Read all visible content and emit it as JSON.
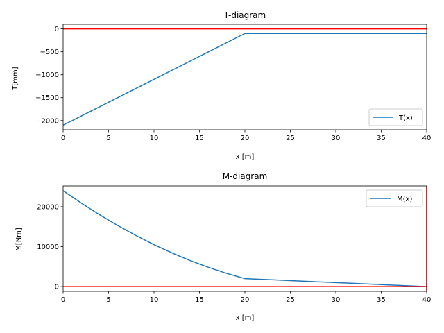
{
  "chart_data": [
    {
      "type": "line",
      "title": "T-diagram",
      "xlabel": "x [m]",
      "ylabel": "T[mm]",
      "xlim": [
        0,
        40
      ],
      "ylim": [
        -2200,
        100
      ],
      "xticks": [
        0,
        5,
        10,
        15,
        20,
        25,
        30,
        35,
        40
      ],
      "yticks": [
        -2000,
        -1500,
        -1000,
        -500,
        0
      ],
      "grid": false,
      "legend_position": "lower-right",
      "series": [
        {
          "name": "T(x)",
          "color": "#1f77b4",
          "x": [
            0,
            20,
            20,
            40
          ],
          "y": [
            -2100,
            -100,
            -100,
            -100
          ]
        }
      ],
      "reference_lines": [
        {
          "color": "#ff0000",
          "x": [
            0,
            40
          ],
          "y": [
            0,
            0
          ]
        }
      ]
    },
    {
      "type": "line",
      "title": "M-diagram",
      "xlabel": "x [m]",
      "ylabel": "M[Nm]",
      "xlim": [
        0,
        40
      ],
      "ylim": [
        -1200,
        25200
      ],
      "xticks": [
        0,
        5,
        10,
        15,
        20,
        25,
        30,
        35,
        40
      ],
      "yticks": [
        0,
        10000,
        20000
      ],
      "grid": false,
      "legend_position": "upper-right",
      "series": [
        {
          "name": "M(x)",
          "color": "#1f77b4",
          "x": [
            0,
            2,
            4,
            6,
            8,
            10,
            12,
            14,
            16,
            18,
            20,
            25,
            30,
            35,
            40
          ],
          "y": [
            24000,
            20900,
            18000,
            15300,
            12800,
            10500,
            8400,
            6500,
            4800,
            3300,
            2000,
            1500,
            1000,
            500,
            0
          ]
        }
      ],
      "reference_lines": [
        {
          "color": "#ff0000",
          "x": [
            0,
            40
          ],
          "y": [
            0,
            0
          ]
        },
        {
          "color": "#ff0000",
          "x": [
            40,
            40
          ],
          "y": [
            -1200,
            25200
          ]
        }
      ]
    }
  ]
}
